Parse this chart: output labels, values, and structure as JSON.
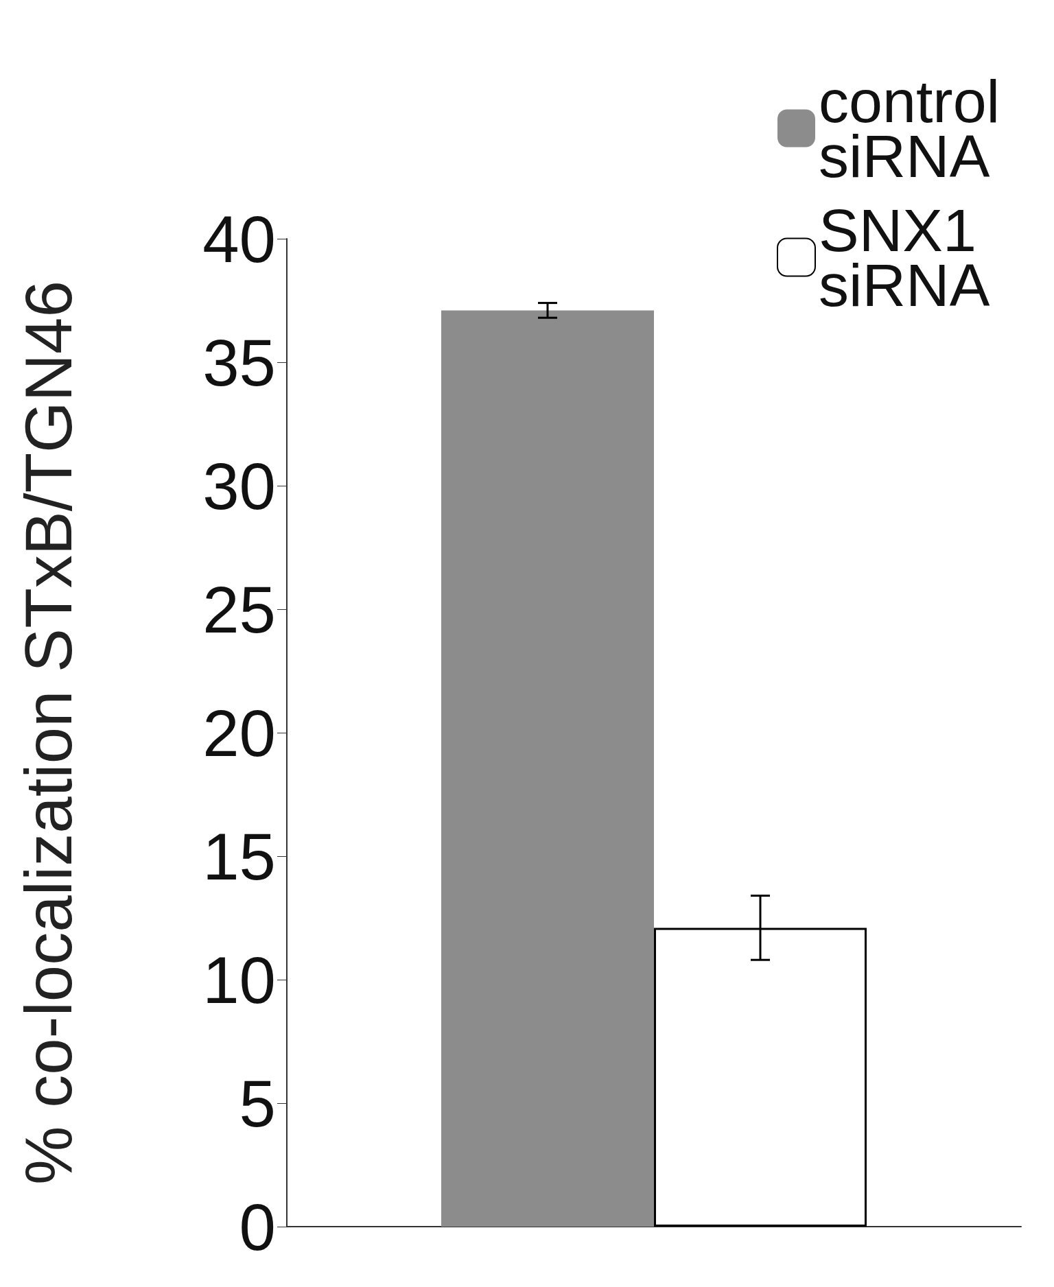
{
  "chart_data": {
    "type": "bar",
    "ylabel": "% co-localization STxB/TGN46",
    "categories": [
      null
    ],
    "ylim": [
      0,
      40
    ],
    "yticks": [
      0,
      5,
      10,
      15,
      20,
      25,
      30,
      35,
      40
    ],
    "legend": "top right",
    "grid": false,
    "series": [
      {
        "name": "control siRNA",
        "color": "#8c8c8c",
        "values": [
          37.1
        ],
        "errors": [
          0.3
        ]
      },
      {
        "name": "SNX1 siRNA",
        "color": "#ffffff",
        "values": [
          12.1
        ],
        "errors": [
          1.3
        ]
      }
    ]
  }
}
